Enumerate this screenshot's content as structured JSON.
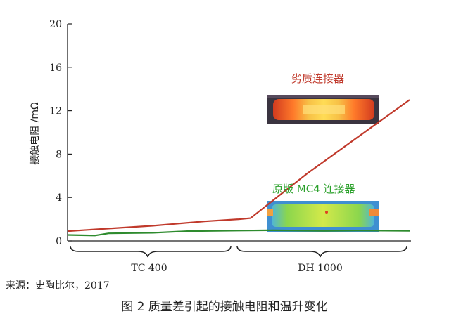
{
  "chart_data": {
    "type": "line",
    "ylabel": "接触电阻 /mΩ",
    "ylim": [
      0,
      20
    ],
    "yticks": [
      0,
      4,
      8,
      12,
      16,
      20
    ],
    "grid": false,
    "series": [
      {
        "name": "劣质连接器",
        "color": "#c0392b",
        "points": [
          [
            0,
            0.9
          ],
          [
            0.25,
            1.4
          ],
          [
            0.4,
            1.8
          ],
          [
            0.5,
            2.0
          ],
          [
            0.535,
            2.1
          ],
          [
            0.7,
            6.2
          ],
          [
            1.0,
            13.0
          ]
        ]
      },
      {
        "name": "原版 MC4 连接器",
        "color": "#2e8b2e",
        "points": [
          [
            0,
            0.55
          ],
          [
            0.08,
            0.5
          ],
          [
            0.12,
            0.7
          ],
          [
            0.25,
            0.75
          ],
          [
            0.35,
            0.9
          ],
          [
            0.5,
            0.95
          ],
          [
            0.6,
            0.98
          ],
          [
            0.75,
            0.93
          ],
          [
            0.85,
            0.96
          ],
          [
            1.0,
            0.93
          ]
        ]
      }
    ],
    "annotations": [
      {
        "text": "劣质连接器",
        "color": "#c0392b"
      },
      {
        "text": "原版 MC4 连接器",
        "color": "#2aa02a"
      }
    ],
    "x_groups": [
      {
        "label": "TC 400"
      },
      {
        "label": "DH 1000"
      }
    ]
  },
  "source": "来源：史陶比尔，2017",
  "caption": "图 2  质量差引起的接触电阻和温升变化"
}
